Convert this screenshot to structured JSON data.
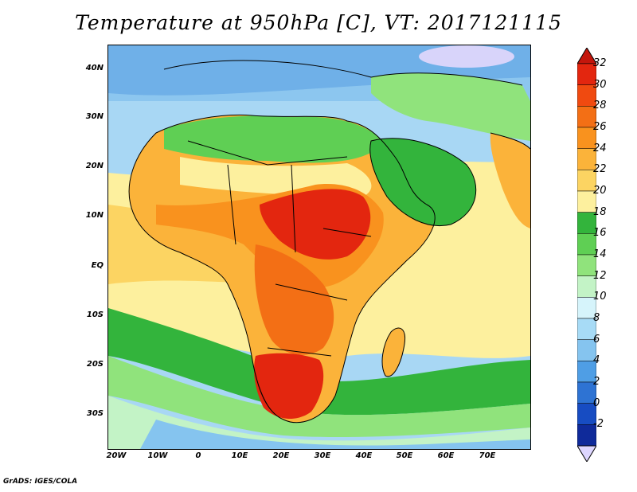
{
  "title": "Temperature at 950hPa [C], VT: 2017121115",
  "credit": "GrADS: IGES/COLA",
  "map": {
    "lat_labels": [
      "40N",
      "30N",
      "20N",
      "10N",
      "EQ",
      "10S",
      "20S",
      "30S"
    ],
    "lon_labels": [
      "20W",
      "10W",
      "0",
      "10E",
      "20E",
      "30E",
      "40E",
      "50E",
      "60E",
      "70E"
    ]
  },
  "colorbar": {
    "labels": [
      "32",
      "30",
      "28",
      "26",
      "24",
      "22",
      "20",
      "18",
      "16",
      "14",
      "12",
      "10",
      "8",
      "6",
      "4",
      "2",
      "0",
      "-2"
    ],
    "colors": [
      "#e3260f",
      "#f04a10",
      "#f36f15",
      "#f9921e",
      "#fbb33a",
      "#fcd462",
      "#fdf09e",
      "#33b43c",
      "#5fcf54",
      "#90e37c",
      "#c3f3c6",
      "#d6f4fb",
      "#a7dbf6",
      "#85c4ef",
      "#4f9ee5",
      "#2e73d3",
      "#174cc2",
      "#0f2a9a"
    ],
    "over_color": "#c4160c",
    "under_color": "#ddd6ff"
  }
}
